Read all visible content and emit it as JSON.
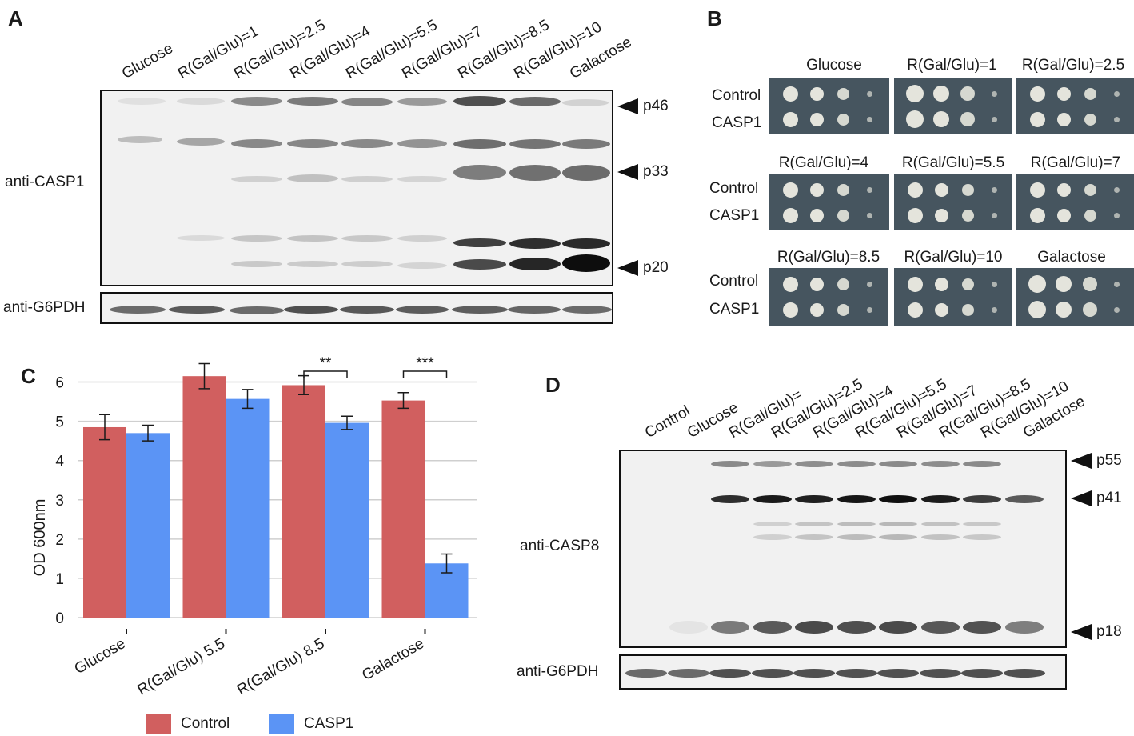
{
  "panel_a": {
    "letter": "A",
    "lanes": [
      "Glucose",
      "R(Gal/Glu)=1",
      "R(Gal/Glu)=2.5",
      "R(Gal/Glu)=4",
      "R(Gal/Glu)=5.5",
      "R(Gal/Glu)=7",
      "R(Gal/Glu)=8.5",
      "R(Gal/Glu)=10",
      "Galactose"
    ],
    "blot_label": "anti-CASP1",
    "loading_label": "anti-G6PDH",
    "markers": [
      "p46",
      "p33",
      "p20"
    ]
  },
  "panel_b": {
    "letter": "B",
    "row_labels": [
      "Control",
      "CASP1"
    ],
    "plates": [
      "Glucose",
      "R(Gal/Glu)=1",
      "R(Gal/Glu)=2.5",
      "R(Gal/Glu)=4",
      "R(Gal/Glu)=5.5",
      "R(Gal/Glu)=7",
      "R(Gal/Glu)=8.5",
      "R(Gal/Glu)=10",
      "Galactose"
    ]
  },
  "panel_c": {
    "letter": "C",
    "legend": [
      "Control",
      "CASP1"
    ],
    "significance": [
      "**",
      "***"
    ]
  },
  "panel_d": {
    "letter": "D",
    "lanes": [
      "Control",
      "Glucose",
      "R(Gal/Glu)=",
      "R(Gal/Glu)=2.5",
      "R(Gal/Glu)=4",
      "R(Gal/Glu)=5.5",
      "R(Gal/Glu)=7",
      "R(Gal/Glu)=8.5",
      "R(Gal/Glu)=10",
      "Galactose"
    ],
    "blot_label": "anti-CASP8",
    "loading_label": "anti-G6PDH",
    "markers": [
      "p55",
      "p41",
      "p18"
    ]
  },
  "colors": {
    "control": "#d15f5f",
    "casp1": "#5b94f5",
    "plate": "#46555f",
    "blot_bg": "#f1f1f1"
  },
  "chart_data": {
    "type": "bar",
    "categories": [
      "Glucose",
      "R(Gal/Glu) 5.5",
      "R(Gal/Glu) 8.5",
      "Galactose"
    ],
    "series": [
      {
        "name": "Control",
        "values": [
          4.85,
          6.15,
          5.92,
          5.53
        ],
        "errors": [
          0.32,
          0.32,
          0.24,
          0.2
        ]
      },
      {
        "name": "CASP1",
        "values": [
          4.7,
          5.57,
          4.96,
          1.38
        ],
        "errors": [
          0.2,
          0.24,
          0.17,
          0.24
        ]
      }
    ],
    "ylabel": "OD 600nm",
    "xlabel": "",
    "ylim": [
      0,
      6.5
    ],
    "yticks": [
      0,
      1,
      2,
      3,
      4,
      5,
      6
    ],
    "grid": true,
    "legend": "bottom",
    "significance": [
      {
        "category": "R(Gal/Glu) 8.5",
        "label": "**"
      },
      {
        "category": "Galactose",
        "label": "***"
      }
    ]
  }
}
